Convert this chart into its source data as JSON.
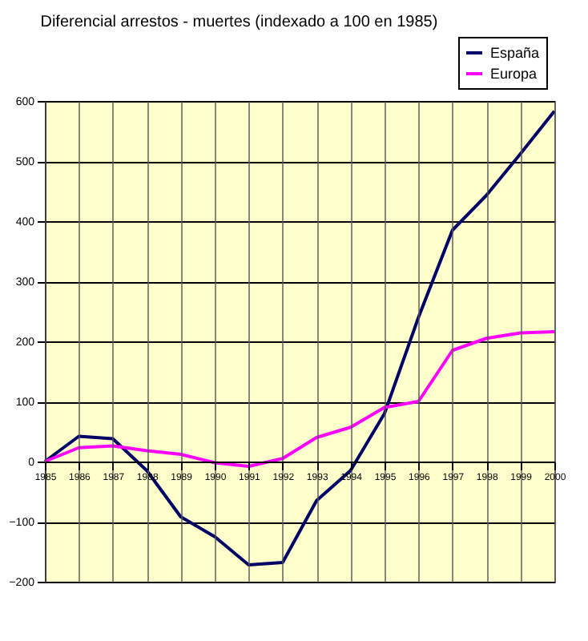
{
  "chart_data": {
    "type": "line",
    "title": "Diferencial arrestos - muertes (indexado a 100 en 1985)",
    "x": [
      1985,
      1986,
      1987,
      1988,
      1989,
      1990,
      1991,
      1992,
      1993,
      1994,
      1995,
      1996,
      1997,
      1998,
      1999,
      2000
    ],
    "series": [
      {
        "name": "España",
        "color": "#000066",
        "values": [
          0,
          42,
          38,
          -15,
          -92,
          -125,
          -172,
          -168,
          -65,
          -15,
          80,
          240,
          385,
          443,
          512,
          583
        ]
      },
      {
        "name": "Europa",
        "color": "#ff00ff",
        "values": [
          0,
          23,
          26,
          18,
          12,
          -2,
          -8,
          5,
          40,
          57,
          90,
          100,
          185,
          205,
          214,
          216
        ]
      }
    ],
    "xlim": [
      1985,
      2000
    ],
    "xticks": [
      1985,
      1986,
      1987,
      1988,
      1989,
      1990,
      1991,
      1992,
      1993,
      1994,
      1995,
      1996,
      1997,
      1998,
      1999,
      2000
    ],
    "ylim": [
      -200,
      600
    ],
    "yticks": [
      -200,
      -100,
      0,
      100,
      200,
      300,
      400,
      500,
      600
    ],
    "grid": true,
    "legend": "top right",
    "marker": "none",
    "line_style": "solid"
  }
}
